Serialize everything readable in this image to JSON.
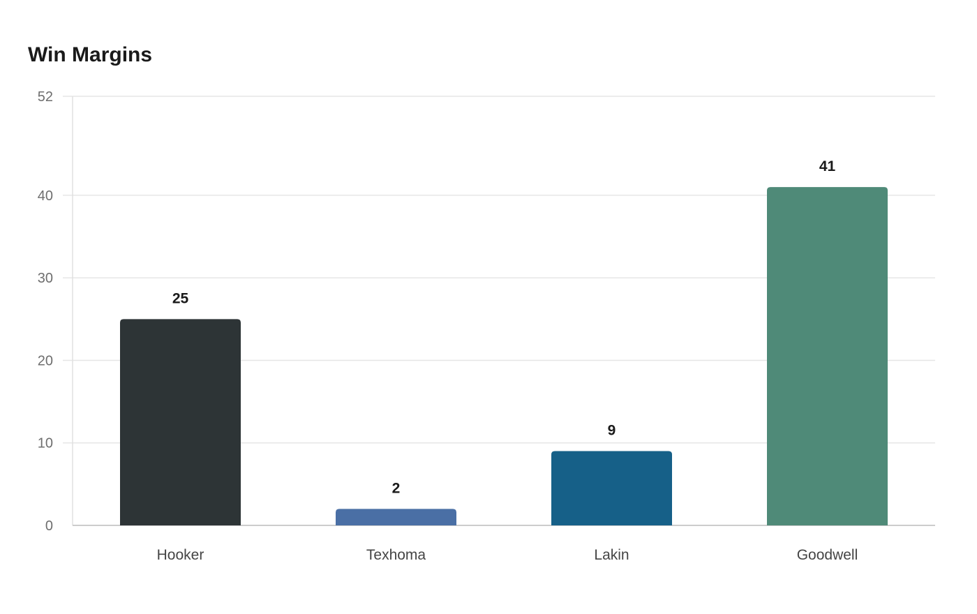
{
  "chart_data": {
    "type": "bar",
    "title": "Win Margins",
    "xlabel": "",
    "ylabel": "",
    "categories": [
      "Hooker",
      "Texhoma",
      "Lakin",
      "Goodwell"
    ],
    "values": [
      25,
      2,
      9,
      41
    ],
    "colors": [
      "#2d3436",
      "#4a6fa5",
      "#166088",
      "#4f8a78"
    ],
    "yticks": [
      0,
      10,
      20,
      30,
      40,
      52
    ],
    "ylim": [
      0,
      52
    ],
    "grid": true,
    "legend": "none",
    "data_labels": true
  }
}
